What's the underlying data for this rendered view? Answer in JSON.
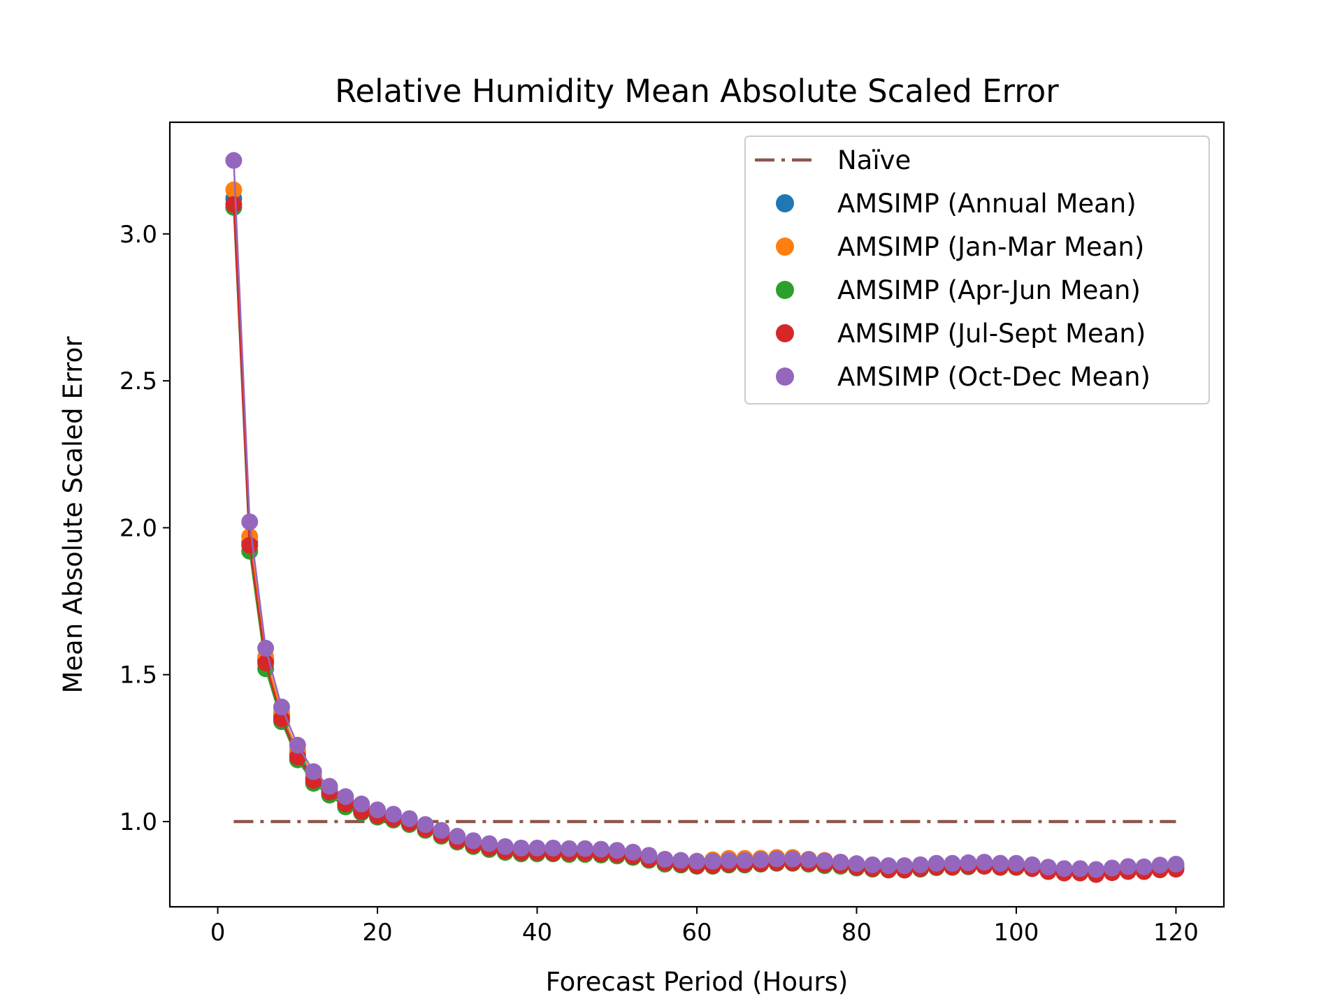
{
  "chart_data": {
    "type": "scatter",
    "title": "Relative Humidity Mean Absolute Scaled Error",
    "xlabel": "Forecast Period (Hours)",
    "ylabel": "Mean Absolute Scaled Error",
    "xlim": [
      -6,
      126
    ],
    "ylim": [
      0.71,
      3.38
    ],
    "xticks": [
      0,
      20,
      40,
      60,
      80,
      100,
      120
    ],
    "yticks": [
      1.0,
      1.5,
      2.0,
      2.5,
      3.0
    ],
    "xtick_labels": [
      "0",
      "20",
      "40",
      "60",
      "80",
      "100",
      "120"
    ],
    "ytick_labels": [
      "1.0",
      "1.5",
      "2.0",
      "2.5",
      "3.0"
    ],
    "grid": false,
    "legend_position": "upper right",
    "x": [
      2,
      4,
      6,
      8,
      10,
      12,
      14,
      16,
      18,
      20,
      22,
      24,
      26,
      28,
      30,
      32,
      34,
      36,
      38,
      40,
      42,
      44,
      46,
      48,
      50,
      52,
      54,
      56,
      58,
      60,
      62,
      64,
      66,
      68,
      70,
      72,
      74,
      76,
      78,
      80,
      82,
      84,
      86,
      88,
      90,
      92,
      94,
      96,
      98,
      100,
      102,
      104,
      106,
      108,
      110,
      112,
      114,
      116,
      118,
      120
    ],
    "naive": {
      "name": "Naïve",
      "color": "#8c564b",
      "x": [
        2,
        120
      ],
      "y": [
        1.0,
        1.0
      ]
    },
    "series": [
      {
        "name": "AMSIMP (Annual Mean)",
        "color": "#1f77b4",
        "values": [
          3.12,
          1.95,
          1.55,
          1.36,
          1.23,
          1.15,
          1.1,
          1.06,
          1.04,
          1.02,
          1.01,
          0.995,
          0.975,
          0.955,
          0.935,
          0.92,
          0.91,
          0.9,
          0.895,
          0.895,
          0.895,
          0.895,
          0.895,
          0.893,
          0.89,
          0.885,
          0.875,
          0.865,
          0.86,
          0.855,
          0.855,
          0.86,
          0.86,
          0.862,
          0.865,
          0.865,
          0.862,
          0.858,
          0.855,
          0.85,
          0.845,
          0.84,
          0.84,
          0.845,
          0.85,
          0.85,
          0.852,
          0.855,
          0.85,
          0.85,
          0.845,
          0.835,
          0.83,
          0.83,
          0.825,
          0.83,
          0.835,
          0.835,
          0.84,
          0.845
        ]
      },
      {
        "name": "AMSIMP (Jan-Mar Mean)",
        "color": "#ff7f0e",
        "values": [
          3.15,
          1.97,
          1.56,
          1.37,
          1.24,
          1.16,
          1.11,
          1.07,
          1.045,
          1.025,
          1.015,
          1.0,
          0.98,
          0.96,
          0.94,
          0.925,
          0.915,
          0.905,
          0.9,
          0.9,
          0.9,
          0.9,
          0.9,
          0.9,
          0.895,
          0.89,
          0.88,
          0.87,
          0.865,
          0.865,
          0.87,
          0.875,
          0.875,
          0.875,
          0.878,
          0.878,
          0.872,
          0.868,
          0.862,
          0.855,
          0.852,
          0.848,
          0.848,
          0.85,
          0.855,
          0.856,
          0.858,
          0.86,
          0.858,
          0.855,
          0.85,
          0.842,
          0.838,
          0.838,
          0.835,
          0.84,
          0.845,
          0.845,
          0.85,
          0.852
        ]
      },
      {
        "name": "AMSIMP (Apr-Jun Mean)",
        "color": "#2ca02c",
        "values": [
          3.09,
          1.92,
          1.52,
          1.34,
          1.21,
          1.13,
          1.09,
          1.05,
          1.03,
          1.015,
          1.005,
          0.99,
          0.97,
          0.95,
          0.93,
          0.915,
          0.905,
          0.895,
          0.89,
          0.89,
          0.89,
          0.888,
          0.888,
          0.886,
          0.883,
          0.878,
          0.868,
          0.855,
          0.852,
          0.848,
          0.848,
          0.852,
          0.852,
          0.855,
          0.858,
          0.858,
          0.855,
          0.85,
          0.848,
          0.842,
          0.838,
          0.835,
          0.835,
          0.838,
          0.843,
          0.844,
          0.846,
          0.848,
          0.844,
          0.844,
          0.84,
          0.83,
          0.826,
          0.826,
          0.822,
          0.827,
          0.832,
          0.83,
          0.836,
          0.84
        ]
      },
      {
        "name": "AMSIMP (Jul-Sept Mean)",
        "color": "#d62728",
        "values": [
          3.1,
          1.94,
          1.54,
          1.35,
          1.22,
          1.14,
          1.1,
          1.06,
          1.035,
          1.02,
          1.01,
          0.995,
          0.975,
          0.955,
          0.935,
          0.92,
          0.91,
          0.9,
          0.895,
          0.895,
          0.893,
          0.893,
          0.893,
          0.89,
          0.888,
          0.882,
          0.872,
          0.86,
          0.855,
          0.85,
          0.85,
          0.855,
          0.855,
          0.857,
          0.86,
          0.86,
          0.858,
          0.854,
          0.852,
          0.845,
          0.84,
          0.836,
          0.835,
          0.84,
          0.845,
          0.845,
          0.848,
          0.848,
          0.845,
          0.845,
          0.84,
          0.83,
          0.825,
          0.825,
          0.82,
          0.826,
          0.83,
          0.83,
          0.836,
          0.838
        ]
      },
      {
        "name": "AMSIMP (Oct-Dec Mean)",
        "color": "#9467bd",
        "values": [
          3.25,
          2.02,
          1.59,
          1.39,
          1.26,
          1.17,
          1.12,
          1.085,
          1.06,
          1.04,
          1.025,
          1.01,
          0.99,
          0.97,
          0.95,
          0.935,
          0.925,
          0.915,
          0.91,
          0.91,
          0.91,
          0.908,
          0.908,
          0.906,
          0.902,
          0.896,
          0.885,
          0.872,
          0.868,
          0.865,
          0.865,
          0.868,
          0.868,
          0.87,
          0.873,
          0.873,
          0.87,
          0.866,
          0.862,
          0.857,
          0.853,
          0.85,
          0.85,
          0.853,
          0.858,
          0.858,
          0.86,
          0.862,
          0.858,
          0.858,
          0.853,
          0.845,
          0.84,
          0.84,
          0.837,
          0.842,
          0.847,
          0.846,
          0.852,
          0.855
        ]
      }
    ]
  }
}
